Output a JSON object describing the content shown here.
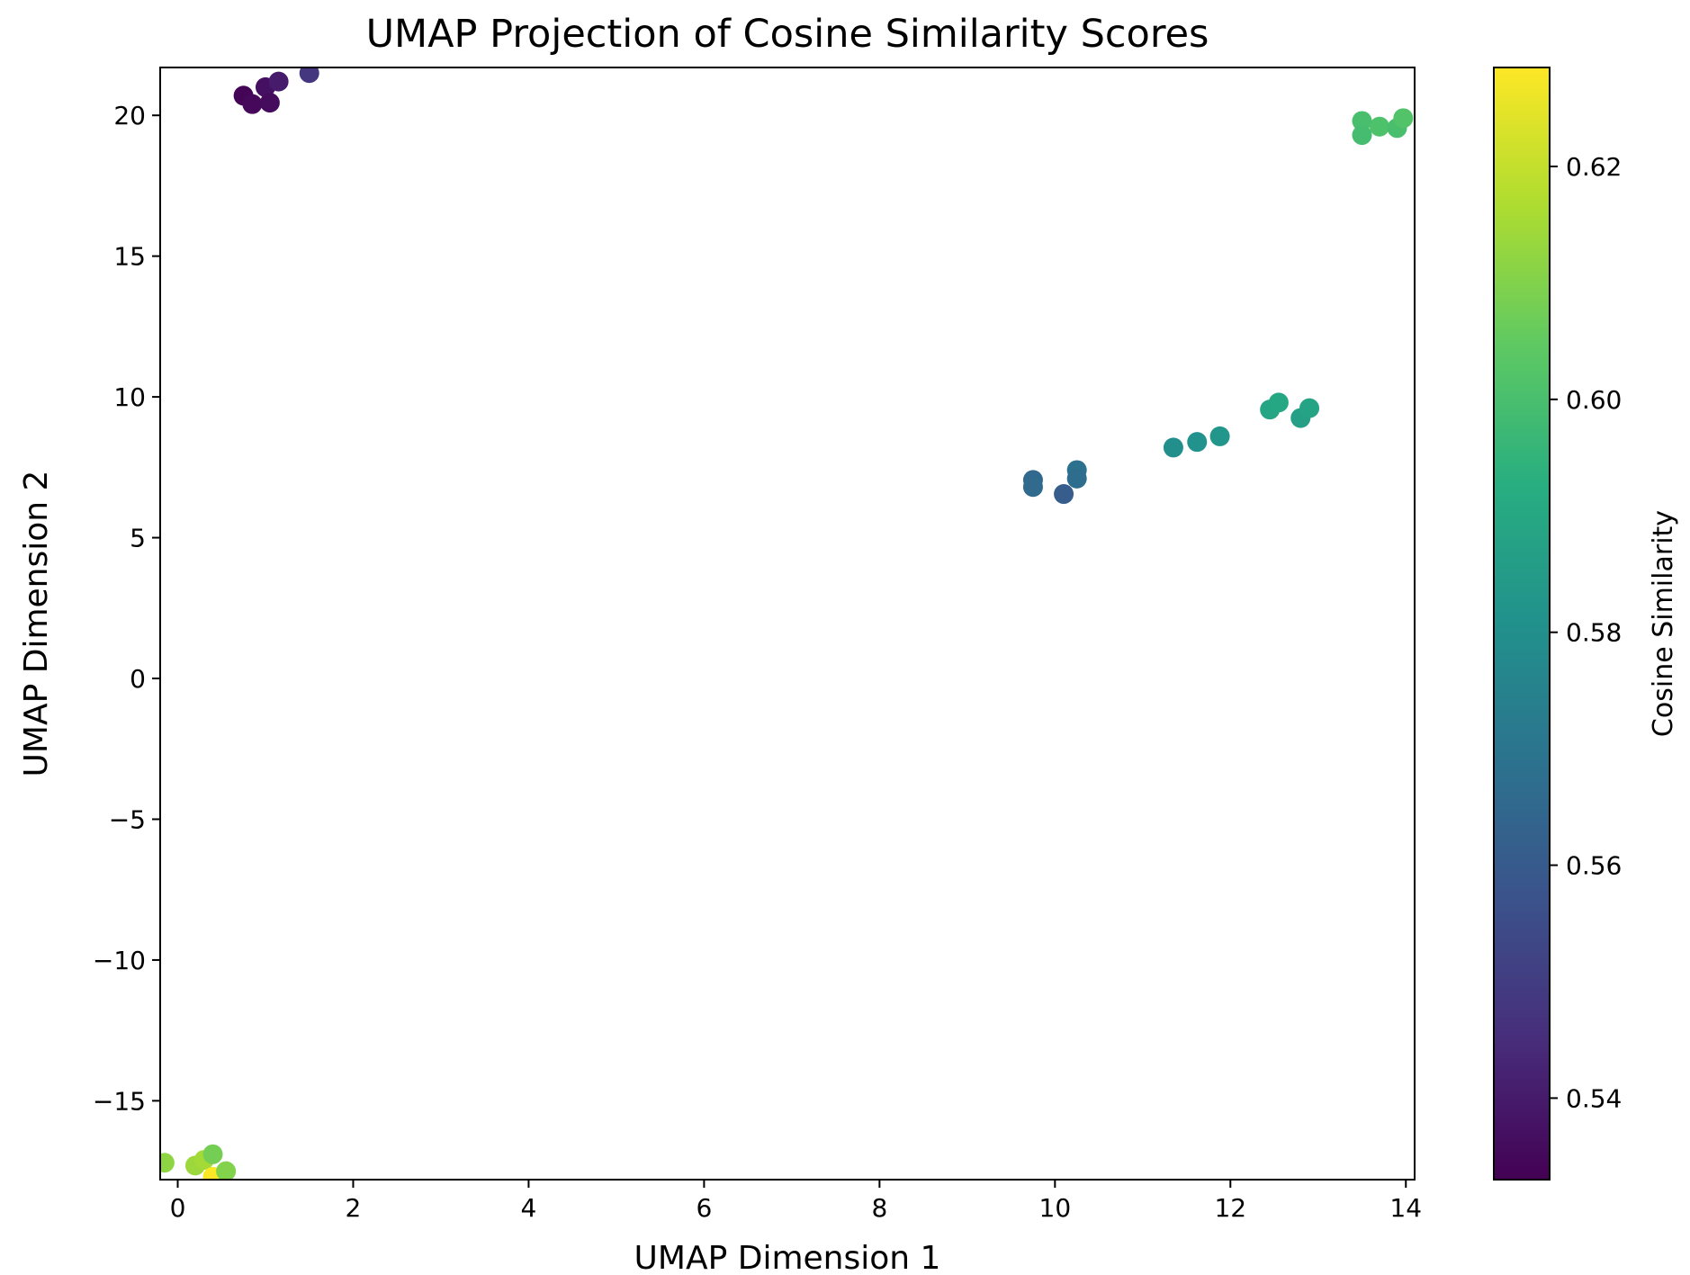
{
  "chart_data": {
    "type": "scatter",
    "title": "UMAP Projection of Cosine Similarity Scores",
    "xlabel": "UMAP Dimension 1",
    "ylabel": "UMAP Dimension 2",
    "xlim": [
      -0.2,
      14.1
    ],
    "ylim": [
      -17.8,
      21.7
    ],
    "xticks": [
      0,
      2,
      4,
      6,
      8,
      10,
      12,
      14
    ],
    "xtick_labels": [
      "0",
      "2",
      "4",
      "6",
      "8",
      "10",
      "12",
      "14"
    ],
    "yticks": [
      -15,
      -10,
      -5,
      0,
      5,
      10,
      15,
      20
    ],
    "ytick_labels": [
      "−15",
      "−10",
      "−5",
      "0",
      "5",
      "10",
      "15",
      "20"
    ],
    "grid": false,
    "colormap": "viridis",
    "colorbar": {
      "label": "Cosine Similarity",
      "range": [
        0.533,
        0.6285
      ],
      "ticks": [
        0.54,
        0.56,
        0.58,
        0.6,
        0.62
      ],
      "tick_labels": [
        "0.54",
        "0.56",
        "0.58",
        "0.60",
        "0.62"
      ]
    },
    "points": [
      {
        "x": 0.75,
        "y": 20.7,
        "c": 0.534
      },
      {
        "x": 0.85,
        "y": 20.4,
        "c": 0.535
      },
      {
        "x": 1.0,
        "y": 21.0,
        "c": 0.537
      },
      {
        "x": 1.05,
        "y": 20.45,
        "c": 0.536
      },
      {
        "x": 1.15,
        "y": 21.2,
        "c": 0.54
      },
      {
        "x": 1.5,
        "y": 21.5,
        "c": 0.548
      },
      {
        "x": 9.75,
        "y": 7.05,
        "c": 0.565
      },
      {
        "x": 9.75,
        "y": 6.8,
        "c": 0.566
      },
      {
        "x": 10.1,
        "y": 6.55,
        "c": 0.561
      },
      {
        "x": 10.25,
        "y": 7.4,
        "c": 0.569
      },
      {
        "x": 10.25,
        "y": 7.1,
        "c": 0.567
      },
      {
        "x": 11.35,
        "y": 8.2,
        "c": 0.58
      },
      {
        "x": 11.62,
        "y": 8.4,
        "c": 0.581
      },
      {
        "x": 11.88,
        "y": 8.6,
        "c": 0.583
      },
      {
        "x": 12.45,
        "y": 9.55,
        "c": 0.589
      },
      {
        "x": 12.55,
        "y": 9.8,
        "c": 0.59
      },
      {
        "x": 12.8,
        "y": 9.25,
        "c": 0.587
      },
      {
        "x": 12.9,
        "y": 9.6,
        "c": 0.588
      },
      {
        "x": 13.5,
        "y": 19.8,
        "c": 0.6
      },
      {
        "x": 13.5,
        "y": 19.3,
        "c": 0.599
      },
      {
        "x": 13.7,
        "y": 19.6,
        "c": 0.601
      },
      {
        "x": 13.9,
        "y": 19.55,
        "c": 0.6
      },
      {
        "x": 13.97,
        "y": 19.9,
        "c": 0.602
      },
      {
        "x": -0.15,
        "y": -17.2,
        "c": 0.612
      },
      {
        "x": 0.2,
        "y": -17.3,
        "c": 0.614
      },
      {
        "x": 0.3,
        "y": -17.1,
        "c": 0.615
      },
      {
        "x": 0.4,
        "y": -16.9,
        "c": 0.608
      },
      {
        "x": 0.4,
        "y": -17.7,
        "c": 0.628
      },
      {
        "x": 0.55,
        "y": -17.5,
        "c": 0.61
      }
    ]
  }
}
